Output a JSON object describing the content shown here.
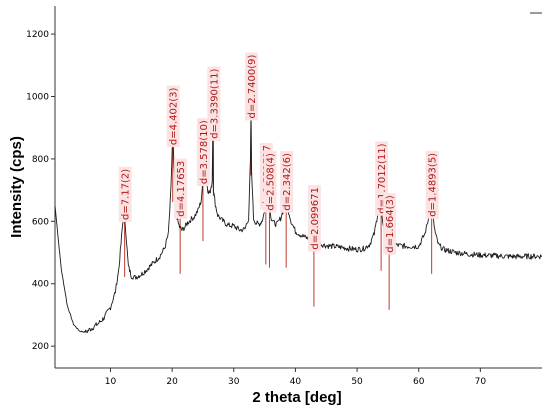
{
  "chart_data": {
    "type": "line",
    "title": "",
    "xlabel": "2 theta [deg]",
    "ylabel": "Intensity (cps)",
    "xlim": [
      1,
      80
    ],
    "ylim": [
      130,
      1290
    ],
    "xticks": [
      10,
      20,
      30,
      40,
      50,
      60,
      70
    ],
    "yticks": [
      200,
      400,
      600,
      800,
      1000,
      1200
    ],
    "grid": false,
    "legend": "none",
    "colors": {
      "pattern": "#1a1a1a",
      "peak_marker": "#c0392b",
      "peak_label_box": "#fbe3e3",
      "peak_label_text": "#b01818"
    },
    "series": [
      {
        "name": "",
        "x": [
          1.0,
          2.0,
          3.0,
          4.0,
          5.0,
          6.0,
          7.0,
          8.0,
          9.0,
          10.0,
          10.8,
          11.4,
          11.9,
          12.2,
          12.5,
          12.9,
          13.4,
          14.0,
          15.0,
          16.0,
          17.0,
          18.0,
          18.8,
          19.4,
          19.8,
          20.0,
          20.1,
          20.3,
          20.6,
          20.9,
          21.2,
          21.6,
          22.0,
          22.5,
          23.0,
          23.6,
          24.2,
          24.7,
          25.0,
          25.2,
          25.5,
          25.8,
          26.2,
          26.5,
          26.6,
          26.7,
          27.0,
          27.4,
          28.0,
          29.0,
          30.0,
          31.0,
          31.8,
          32.4,
          32.7,
          32.8,
          32.9,
          33.2,
          33.6,
          34.1,
          34.6,
          35.1,
          35.4,
          35.7,
          36.1,
          36.5,
          37.0,
          37.6,
          38.2,
          38.5,
          38.8,
          39.3,
          40.0,
          41.0,
          42.0,
          43.0,
          44.0,
          45.0,
          46.0,
          47.0,
          48.0,
          49.0,
          50.0,
          51.0,
          52.0,
          52.8,
          53.3,
          53.7,
          54.0,
          54.3,
          54.7,
          55.3,
          56.0,
          57.0,
          58.0,
          59.0,
          60.0,
          61.0,
          61.6,
          62.0,
          62.3,
          62.7,
          63.2,
          64.0,
          65.0,
          66.0,
          67.0,
          68.0,
          70.0,
          72.0,
          74.0,
          76.0,
          78.0,
          80.0
        ],
        "y": [
          650,
          450,
          330,
          270,
          248,
          245,
          258,
          272,
          292,
          325,
          375,
          455,
          575,
          630,
          565,
          455,
          425,
          420,
          430,
          448,
          468,
          488,
          515,
          560,
          700,
          820,
          870,
          780,
          640,
          600,
          582,
          572,
          580,
          595,
          605,
          615,
          635,
          665,
          720,
          745,
          740,
          700,
          690,
          730,
          890,
          700,
          655,
          620,
          605,
          588,
          585,
          572,
          575,
          610,
          790,
          955,
          760,
          610,
          595,
          590,
          602,
          640,
          670,
          650,
          610,
          595,
          590,
          610,
          645,
          660,
          640,
          600,
          568,
          555,
          545,
          535,
          528,
          522,
          520,
          518,
          515,
          512,
          510,
          512,
          525,
          560,
          620,
          650,
          628,
          580,
          545,
          530,
          525,
          522,
          520,
          520,
          520,
          560,
          610,
          640,
          615,
          560,
          525,
          510,
          505,
          500,
          498,
          495,
          492,
          490,
          488,
          487,
          488,
          488
        ]
      }
    ],
    "peaks": [
      {
        "label": "d=7.17(2)",
        "x": 12.3,
        "y": 630
      },
      {
        "label": "d=4.402(3)",
        "x": 20.1,
        "y": 870
      },
      {
        "label": "d=4.17653",
        "x": 21.3,
        "y": 640
      },
      {
        "label": "d=3.578(10)",
        "x": 25.0,
        "y": 745
      },
      {
        "label": "d=3.3390(11)",
        "x": 26.7,
        "y": 890
      },
      {
        "label": "d=2.7400(9)",
        "x": 32.8,
        "y": 955
      },
      {
        "label": "d=2.553727",
        "x": 35.2,
        "y": 670
      },
      {
        "label": "d=2.508(4)",
        "x": 35.8,
        "y": 660
      },
      {
        "label": "d=2.342(6)",
        "x": 38.5,
        "y": 660
      },
      {
        "label": "d=2.099671",
        "x": 43.0,
        "y": 535
      },
      {
        "label": "d=1.7012(11)",
        "x": 53.9,
        "y": 650
      },
      {
        "label": "d=1.664(3)",
        "x": 55.2,
        "y": 525
      },
      {
        "label": "d=1.4893(5)",
        "x": 62.1,
        "y": 640
      }
    ]
  }
}
